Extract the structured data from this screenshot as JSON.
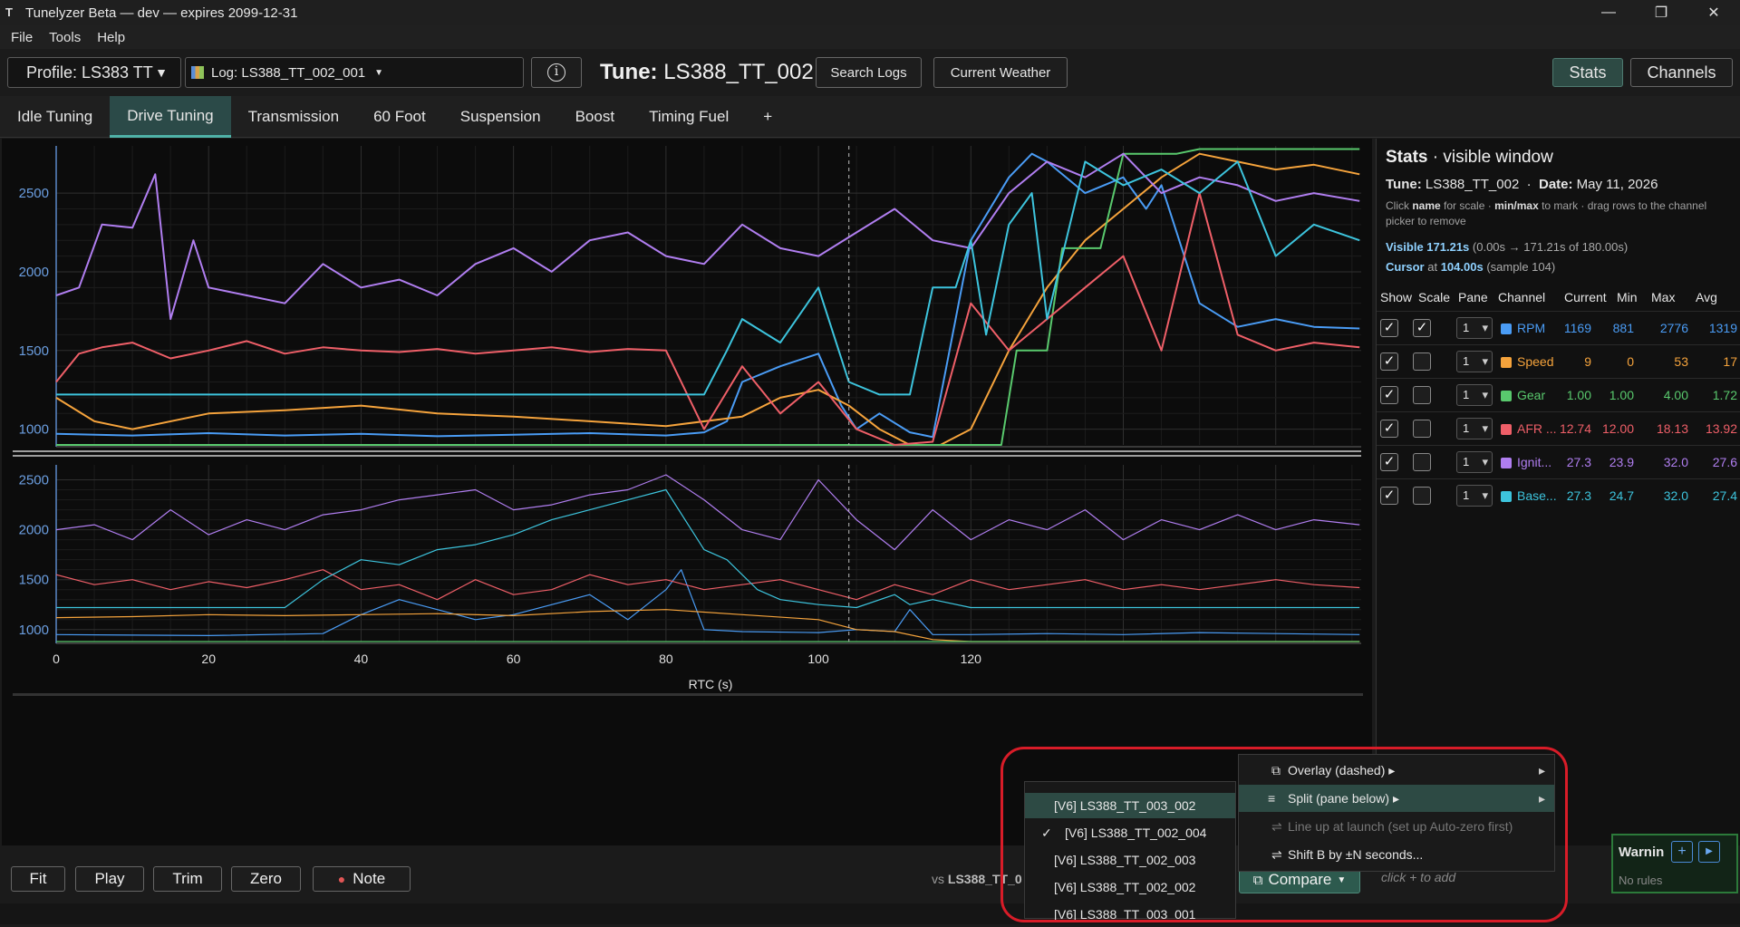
{
  "window": {
    "title": "Tunelyzer Beta — dev — expires 2099-12-31",
    "minimize": "—",
    "maximize": "❐",
    "close": "✕"
  },
  "menu": [
    "File",
    "Tools",
    "Help"
  ],
  "toolbar": {
    "profile": "Profile: LS383 TT",
    "log": "Log: LS388_TT_002_001",
    "info": "i",
    "tune_label": "Tune:",
    "tune_value": "LS388_TT_002",
    "search_logs": "Search Logs",
    "current_weather": "Current Weather",
    "stats": "Stats",
    "channels": "Channels"
  },
  "tabs": [
    "Idle Tuning",
    "Drive Tuning",
    "Transmission",
    "60 Foot",
    "Suspension",
    "Boost",
    "Timing Fuel",
    "+"
  ],
  "active_tab": 1,
  "chart_data": [
    {
      "type": "line",
      "pane": 1,
      "x_ticks": [],
      "yticks": [
        "2500",
        "2000",
        "1500",
        "1000"
      ],
      "ylim": [
        900,
        2800
      ],
      "xlim": [
        0,
        171.21
      ],
      "cursor_x": 104,
      "series": [
        {
          "name": "RPM",
          "color": "#4a9cf5",
          "x": [
            0,
            10,
            20,
            30,
            40,
            50,
            60,
            70,
            80,
            85,
            88,
            90,
            95,
            100,
            103,
            105,
            108,
            112,
            115,
            118,
            120,
            125,
            128,
            130,
            135,
            140,
            143,
            145,
            150,
            155,
            160,
            165,
            171
          ],
          "values": [
            970,
            960,
            975,
            960,
            970,
            955,
            965,
            975,
            960,
            980,
            1050,
            1300,
            1400,
            1480,
            1150,
            1000,
            1100,
            980,
            950,
            1700,
            2200,
            2600,
            2750,
            2700,
            2500,
            2600,
            2400,
            2550,
            1800,
            1650,
            1700,
            1650,
            1640
          ]
        },
        {
          "name": "Speed",
          "color": "#f5a33c",
          "x": [
            0,
            5,
            10,
            20,
            30,
            40,
            50,
            60,
            70,
            80,
            90,
            95,
            100,
            104,
            108,
            112,
            116,
            120,
            125,
            130,
            135,
            140,
            145,
            150,
            155,
            160,
            165,
            171
          ],
          "values": [
            1200,
            1050,
            1000,
            1100,
            1120,
            1150,
            1100,
            1080,
            1050,
            1020,
            1080,
            1200,
            1250,
            1150,
            1000,
            900,
            900,
            1000,
            1500,
            1900,
            2200,
            2400,
            2600,
            2750,
            2700,
            2650,
            2680,
            2620
          ]
        },
        {
          "name": "Gear",
          "color": "#59c96d",
          "x": [
            0,
            50,
            100,
            105,
            110,
            124,
            126,
            130,
            132,
            137,
            140,
            142,
            147,
            150,
            171
          ],
          "values": [
            900,
            900,
            900,
            900,
            900,
            900,
            1500,
            1500,
            2150,
            2150,
            2750,
            2750,
            2750,
            2780,
            2780
          ]
        },
        {
          "name": "AFR Commanded",
          "color": "#ef5f68",
          "x": [
            0,
            3,
            6,
            10,
            15,
            20,
            25,
            30,
            35,
            40,
            45,
            50,
            55,
            60,
            65,
            70,
            75,
            80,
            85,
            90,
            95,
            100,
            105,
            110,
            115,
            120,
            125,
            130,
            135,
            140,
            145,
            150,
            155,
            160,
            165,
            171
          ],
          "values": [
            1300,
            1480,
            1520,
            1550,
            1450,
            1500,
            1560,
            1480,
            1520,
            1500,
            1490,
            1510,
            1480,
            1500,
            1520,
            1490,
            1510,
            1500,
            1000,
            1400,
            1100,
            1300,
            1000,
            900,
            920,
            1800,
            1500,
            1700,
            1900,
            2100,
            1500,
            2500,
            1600,
            1500,
            1550,
            1520
          ]
        },
        {
          "name": "Ignition Timing",
          "color": "#b07ef0",
          "x": [
            0,
            3,
            6,
            10,
            13,
            15,
            18,
            20,
            25,
            30,
            35,
            40,
            45,
            50,
            55,
            60,
            65,
            70,
            75,
            80,
            85,
            90,
            95,
            100,
            105,
            110,
            115,
            120,
            125,
            130,
            135,
            140,
            145,
            150,
            155,
            160,
            165,
            171
          ],
          "values": [
            1850,
            1900,
            2300,
            2280,
            2620,
            1700,
            2200,
            1900,
            1850,
            1800,
            2050,
            1900,
            1950,
            1850,
            2050,
            2150,
            2000,
            2200,
            2250,
            2100,
            2050,
            2300,
            2150,
            2100,
            2250,
            2400,
            2200,
            2150,
            2500,
            2700,
            2600,
            2750,
            2500,
            2600,
            2550,
            2450,
            2500,
            2450
          ]
        },
        {
          "name": "Base Timing",
          "color": "#3dc4dd",
          "x": [
            0,
            20,
            40,
            60,
            80,
            85,
            88,
            90,
            95,
            100,
            104,
            108,
            112,
            115,
            118,
            120,
            122,
            125,
            128,
            130,
            135,
            140,
            145,
            150,
            155,
            160,
            165,
            171
          ],
          "values": [
            1220,
            1220,
            1220,
            1220,
            1220,
            1220,
            1500,
            1700,
            1550,
            1900,
            1300,
            1220,
            1220,
            1900,
            1900,
            2200,
            1600,
            2300,
            2500,
            1700,
            2700,
            2550,
            2650,
            2500,
            2700,
            2100,
            2300,
            2200
          ]
        }
      ]
    },
    {
      "type": "line",
      "pane": 2,
      "x_ticks": [
        "0",
        "20",
        "40",
        "60",
        "80",
        "100",
        "120"
      ],
      "xlabel": "RTC (s)",
      "yticks": [
        "2500",
        "2000",
        "1500",
        "1000"
      ],
      "ylim": [
        880,
        2650
      ],
      "xlim": [
        0,
        171.21
      ],
      "cursor_x": 104,
      "series": [
        {
          "name": "RPM",
          "color": "#4a9cf5",
          "x": [
            0,
            20,
            35,
            40,
            45,
            50,
            55,
            60,
            70,
            75,
            80,
            82,
            85,
            90,
            100,
            105,
            110,
            112,
            115,
            120,
            130,
            140,
            150,
            160,
            171
          ],
          "values": [
            950,
            940,
            960,
            1150,
            1300,
            1200,
            1100,
            1150,
            1350,
            1100,
            1400,
            1600,
            1000,
            980,
            970,
            1000,
            980,
            1200,
            950,
            950,
            960,
            950,
            970,
            960,
            950
          ]
        },
        {
          "name": "Speed",
          "color": "#f5a33c",
          "x": [
            0,
            10,
            20,
            30,
            40,
            50,
            60,
            70,
            80,
            90,
            100,
            105,
            110,
            115,
            120,
            130,
            140,
            150,
            160,
            171
          ],
          "values": [
            1120,
            1130,
            1150,
            1140,
            1150,
            1160,
            1140,
            1180,
            1200,
            1150,
            1100,
            1000,
            980,
            900,
            880,
            880,
            880,
            880,
            880,
            880
          ]
        },
        {
          "name": "Gear",
          "color": "#59c96d",
          "x": [
            0,
            171
          ],
          "values": [
            880,
            880
          ]
        },
        {
          "name": "AFR Commanded",
          "color": "#ef5f68",
          "x": [
            0,
            5,
            10,
            15,
            20,
            25,
            30,
            35,
            40,
            45,
            50,
            55,
            60,
            65,
            70,
            75,
            80,
            85,
            90,
            95,
            100,
            105,
            110,
            115,
            120,
            125,
            130,
            135,
            140,
            145,
            150,
            155,
            160,
            165,
            171
          ],
          "values": [
            1550,
            1450,
            1500,
            1400,
            1480,
            1420,
            1500,
            1600,
            1400,
            1450,
            1300,
            1500,
            1350,
            1400,
            1550,
            1450,
            1500,
            1400,
            1450,
            1500,
            1400,
            1300,
            1450,
            1350,
            1500,
            1400,
            1450,
            1500,
            1400,
            1450,
            1400,
            1450,
            1500,
            1450,
            1420
          ]
        },
        {
          "name": "Ignition Timing",
          "color": "#b07ef0",
          "x": [
            0,
            5,
            10,
            15,
            20,
            25,
            30,
            35,
            40,
            45,
            50,
            55,
            60,
            65,
            70,
            75,
            80,
            85,
            90,
            95,
            100,
            105,
            110,
            115,
            120,
            125,
            130,
            135,
            140,
            145,
            150,
            155,
            160,
            165,
            171
          ],
          "values": [
            2000,
            2050,
            1900,
            2200,
            1950,
            2100,
            2000,
            2150,
            2200,
            2300,
            2350,
            2400,
            2200,
            2250,
            2350,
            2400,
            2550,
            2300,
            2000,
            1900,
            2500,
            2100,
            1800,
            2200,
            1900,
            2100,
            2000,
            2200,
            1900,
            2100,
            2000,
            2150,
            2000,
            2100,
            2050
          ]
        },
        {
          "name": "Base Timing",
          "color": "#3dc4dd",
          "x": [
            0,
            30,
            35,
            40,
            45,
            50,
            55,
            60,
            65,
            70,
            75,
            80,
            85,
            88,
            92,
            95,
            100,
            105,
            110,
            112,
            115,
            120,
            130,
            140,
            150,
            160,
            171
          ],
          "values": [
            1220,
            1220,
            1500,
            1700,
            1650,
            1800,
            1850,
            1950,
            2100,
            2200,
            2300,
            2400,
            1800,
            1700,
            1400,
            1300,
            1250,
            1220,
            1350,
            1250,
            1300,
            1220,
            1220,
            1220,
            1220,
            1220,
            1220
          ]
        }
      ]
    }
  ],
  "stats": {
    "title_bold": "Stats",
    "title_rest": "· visible window",
    "tune_label": "Tune:",
    "tune_value": "LS388_TT_002",
    "date_label": "Date:",
    "date_value": "May 11, 2026",
    "help_1": "Click ",
    "help_name": "name",
    "help_2": " for scale · ",
    "help_minmax": "min/max",
    "help_3": " to mark · drag rows to the channel picker to remove",
    "visible_label": "Visible 171.21s",
    "visible_rest": " (0.00s → 171.21s of 180.00s)",
    "cursor_label": "Cursor",
    "cursor_at": " at ",
    "cursor_value": "104.00s",
    "cursor_rest": " (sample 104)",
    "headers": [
      "Show",
      "Scale",
      "Pane",
      "Channel",
      "Current",
      "Min",
      "Max",
      "Avg"
    ],
    "rows": [
      {
        "show": true,
        "scale": true,
        "pane": "1",
        "color": "#4a9cf5",
        "channel": "RPM",
        "current": "1169",
        "min": "881",
        "max": "2776",
        "avg": "1319"
      },
      {
        "show": true,
        "scale": false,
        "pane": "1",
        "color": "#f5a33c",
        "channel": "Speed",
        "current": "9",
        "min": "0",
        "max": "53",
        "avg": "17"
      },
      {
        "show": true,
        "scale": false,
        "pane": "1",
        "color": "#59c96d",
        "channel": "Gear",
        "current": "1.00",
        "min": "1.00",
        "max": "4.00",
        "avg": "1.72"
      },
      {
        "show": true,
        "scale": false,
        "pane": "1",
        "color": "#ef5f68",
        "channel": "AFR ...",
        "current": "12.74",
        "min": "12.00",
        "max": "18.13",
        "avg": "13.92"
      },
      {
        "show": true,
        "scale": false,
        "pane": "1",
        "color": "#b07ef0",
        "channel": "Ignit...",
        "current": "27.3",
        "min": "23.9",
        "max": "32.0",
        "avg": "27.6"
      },
      {
        "show": true,
        "scale": false,
        "pane": "1",
        "color": "#3dc4dd",
        "channel": "Base...",
        "current": "27.3",
        "min": "24.7",
        "max": "32.0",
        "avg": "27.4"
      }
    ]
  },
  "bottom": {
    "fit": "Fit",
    "play": "Play",
    "trim": "Trim",
    "zero": "Zero",
    "note": "Note",
    "vs_label": "vs",
    "vs_value": "LS388_TT_0",
    "compare": "Compare",
    "click_to_add": "click + to add",
    "warnings": "Warnin",
    "no_rules": "No rules"
  },
  "compare_logs": [
    {
      "label": "[V6] LS388_TT_003_002",
      "checked": false,
      "highlight": true
    },
    {
      "label": "[V6] LS388_TT_002_004",
      "checked": true,
      "highlight": false
    },
    {
      "label": "[V6] LS388_TT_002_003",
      "checked": false,
      "highlight": false
    },
    {
      "label": "[V6] LS388_TT_002_002",
      "checked": false,
      "highlight": false
    },
    {
      "label": "[V6] LS388_TT_003_001",
      "checked": false,
      "highlight": false
    }
  ],
  "compare_menu": [
    {
      "label": "Overlay (dashed) ▸",
      "icon": "⧉",
      "disabled": false,
      "highlight": false,
      "submenu": true
    },
    {
      "label": "Split (pane below) ▸",
      "icon": "≡",
      "disabled": false,
      "highlight": true,
      "submenu": true
    },
    {
      "label": "Line up at launch  (set up Auto-zero first)",
      "icon": "⇌",
      "disabled": true,
      "highlight": false,
      "submenu": false
    },
    {
      "label": "Shift B by ±N seconds...",
      "icon": "⇌",
      "disabled": false,
      "highlight": false,
      "submenu": false
    }
  ]
}
